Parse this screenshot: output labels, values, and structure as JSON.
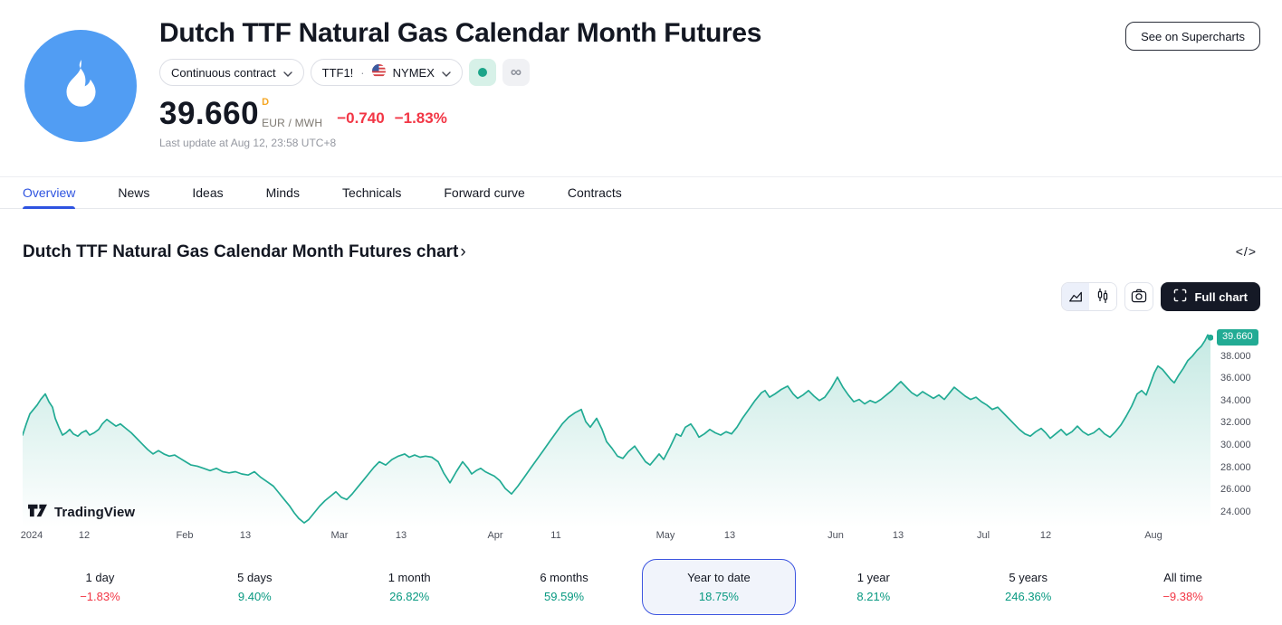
{
  "header": {
    "title": "Dutch TTF Natural Gas Calendar Month Futures",
    "supercharts_label": "See on Supercharts",
    "contract_label": "Continuous contract",
    "symbol": "TTF1!",
    "separator": "·",
    "exchange": "NYMEX",
    "price": "39.660",
    "data_mode": "D",
    "unit": "EUR / MWH",
    "change_abs": "−0.740",
    "change_pct": "−1.83%",
    "last_update": "Last update at Aug 12, 23:58 UTC+8",
    "infinity_glyph": "∞"
  },
  "tabs": [
    {
      "label": "Overview",
      "active": true
    },
    {
      "label": "News",
      "active": false
    },
    {
      "label": "Ideas",
      "active": false
    },
    {
      "label": "Minds",
      "active": false
    },
    {
      "label": "Technicals",
      "active": false
    },
    {
      "label": "Forward curve",
      "active": false
    },
    {
      "label": "Contracts",
      "active": false
    }
  ],
  "chart_section": {
    "heading": "Dutch TTF Natural Gas Calendar Month Futures chart",
    "heading_arrow": "›",
    "code_glyph": "</>",
    "full_chart_label": "Full chart",
    "watermark": "TradingView"
  },
  "periods": [
    {
      "label": "1 day",
      "value": "−1.83%",
      "dir": "down",
      "selected": false
    },
    {
      "label": "5 days",
      "value": "9.40%",
      "dir": "up",
      "selected": false
    },
    {
      "label": "1 month",
      "value": "26.82%",
      "dir": "up",
      "selected": false
    },
    {
      "label": "6 months",
      "value": "59.59%",
      "dir": "up",
      "selected": false
    },
    {
      "label": "Year to date",
      "value": "18.75%",
      "dir": "up",
      "selected": true
    },
    {
      "label": "1 year",
      "value": "8.21%",
      "dir": "up",
      "selected": false
    },
    {
      "label": "5 years",
      "value": "246.36%",
      "dir": "up",
      "selected": false
    },
    {
      "label": "All time",
      "value": "−9.38%",
      "dir": "down",
      "selected": false
    }
  ],
  "colors": {
    "up": "#089981",
    "down": "#f23645",
    "accent": "#2e53e0",
    "line": "#22ab94"
  },
  "chart_data": {
    "type": "area",
    "title": "Dutch TTF Natural Gas Calendar Month Futures chart",
    "ylabel": "EUR/MWH",
    "last_price": 39.66,
    "last_price_label": "39.660",
    "legend_position": "none",
    "grid": false,
    "axis": {
      "value_top": 40.9,
      "value_bottom": 22.6,
      "plot_left": 25,
      "plot_right": 1340,
      "plot_top": 358,
      "plot_bottom": 583
    },
    "y_ticks": [
      {
        "label": "38.000",
        "value": 38
      },
      {
        "label": "36.000",
        "value": 36
      },
      {
        "label": "34.000",
        "value": 34
      },
      {
        "label": "32.000",
        "value": 32
      },
      {
        "label": "30.000",
        "value": 30
      },
      {
        "label": "28.000",
        "value": 28
      },
      {
        "label": "26.000",
        "value": 26
      },
      {
        "label": "24.000",
        "value": 24
      }
    ],
    "x_ticks": [
      {
        "label": "2024",
        "x": 35
      },
      {
        "label": "12",
        "x": 93
      },
      {
        "label": "Feb",
        "x": 204
      },
      {
        "label": "13",
        "x": 271
      },
      {
        "label": "Mar",
        "x": 375
      },
      {
        "label": "13",
        "x": 443
      },
      {
        "label": "Apr",
        "x": 547
      },
      {
        "label": "11",
        "x": 614
      },
      {
        "label": "May",
        "x": 735
      },
      {
        "label": "13",
        "x": 806
      },
      {
        "label": "Jun",
        "x": 923
      },
      {
        "label": "13",
        "x": 992
      },
      {
        "label": "Jul",
        "x": 1086
      },
      {
        "label": "12",
        "x": 1155
      },
      {
        "label": "Aug",
        "x": 1274
      }
    ],
    "points": [
      [
        25,
        30.9
      ],
      [
        29,
        31.9
      ],
      [
        33,
        32.8
      ],
      [
        37,
        33.2
      ],
      [
        41,
        33.6
      ],
      [
        45,
        34.1
      ],
      [
        50,
        34.6
      ],
      [
        54,
        33.9
      ],
      [
        58,
        33.4
      ],
      [
        61,
        32.4
      ],
      [
        65,
        31.6
      ],
      [
        69,
        30.9
      ],
      [
        73,
        31.1
      ],
      [
        77,
        31.4
      ],
      [
        81,
        31.0
      ],
      [
        86,
        30.8
      ],
      [
        90,
        31.1
      ],
      [
        95,
        31.3
      ],
      [
        99,
        30.9
      ],
      [
        104,
        31.1
      ],
      [
        109,
        31.4
      ],
      [
        113,
        31.9
      ],
      [
        118,
        32.3
      ],
      [
        123,
        32.0
      ],
      [
        128,
        31.7
      ],
      [
        133,
        31.9
      ],
      [
        139,
        31.5
      ],
      [
        145,
        31.1
      ],
      [
        151,
        30.6
      ],
      [
        157,
        30.1
      ],
      [
        163,
        29.6
      ],
      [
        169,
        29.2
      ],
      [
        175,
        29.5
      ],
      [
        181,
        29.2
      ],
      [
        187,
        29.0
      ],
      [
        193,
        29.1
      ],
      [
        199,
        28.8
      ],
      [
        205,
        28.5
      ],
      [
        211,
        28.2
      ],
      [
        218,
        28.1
      ],
      [
        225,
        27.9
      ],
      [
        232,
        27.7
      ],
      [
        239,
        27.9
      ],
      [
        246,
        27.6
      ],
      [
        253,
        27.5
      ],
      [
        260,
        27.6
      ],
      [
        267,
        27.4
      ],
      [
        274,
        27.3
      ],
      [
        281,
        27.6
      ],
      [
        288,
        27.1
      ],
      [
        295,
        26.7
      ],
      [
        302,
        26.3
      ],
      [
        308,
        25.7
      ],
      [
        314,
        25.1
      ],
      [
        320,
        24.5
      ],
      [
        325,
        23.9
      ],
      [
        330,
        23.4
      ],
      [
        336,
        23.0
      ],
      [
        341,
        23.3
      ],
      [
        347,
        23.9
      ],
      [
        353,
        24.5
      ],
      [
        359,
        25.0
      ],
      [
        365,
        25.4
      ],
      [
        371,
        25.8
      ],
      [
        377,
        25.3
      ],
      [
        383,
        25.1
      ],
      [
        389,
        25.6
      ],
      [
        395,
        26.2
      ],
      [
        401,
        26.8
      ],
      [
        407,
        27.4
      ],
      [
        413,
        28.0
      ],
      [
        419,
        28.5
      ],
      [
        426,
        28.2
      ],
      [
        433,
        28.7
      ],
      [
        440,
        29.0
      ],
      [
        447,
        29.2
      ],
      [
        452,
        28.9
      ],
      [
        458,
        29.1
      ],
      [
        464,
        28.9
      ],
      [
        470,
        29.0
      ],
      [
        477,
        28.9
      ],
      [
        484,
        28.5
      ],
      [
        490,
        27.5
      ],
      [
        497,
        26.6
      ],
      [
        504,
        27.6
      ],
      [
        511,
        28.5
      ],
      [
        517,
        27.9
      ],
      [
        521,
        27.4
      ],
      [
        526,
        27.7
      ],
      [
        531,
        27.9
      ],
      [
        536,
        27.6
      ],
      [
        541,
        27.4
      ],
      [
        546,
        27.2
      ],
      [
        552,
        26.8
      ],
      [
        558,
        26.1
      ],
      [
        565,
        25.6
      ],
      [
        572,
        26.3
      ],
      [
        579,
        27.1
      ],
      [
        586,
        27.9
      ],
      [
        593,
        28.7
      ],
      [
        600,
        29.5
      ],
      [
        607,
        30.3
      ],
      [
        614,
        31.1
      ],
      [
        621,
        31.9
      ],
      [
        628,
        32.5
      ],
      [
        635,
        32.9
      ],
      [
        642,
        33.2
      ],
      [
        647,
        32.1
      ],
      [
        652,
        31.6
      ],
      [
        659,
        32.4
      ],
      [
        665,
        31.4
      ],
      [
        670,
        30.3
      ],
      [
        676,
        29.7
      ],
      [
        682,
        29.0
      ],
      [
        688,
        28.8
      ],
      [
        694,
        29.4
      ],
      [
        701,
        29.9
      ],
      [
        707,
        29.2
      ],
      [
        713,
        28.5
      ],
      [
        718,
        28.2
      ],
      [
        724,
        28.8
      ],
      [
        728,
        29.2
      ],
      [
        733,
        28.7
      ],
      [
        740,
        29.8
      ],
      [
        747,
        31.0
      ],
      [
        752,
        30.8
      ],
      [
        757,
        31.6
      ],
      [
        763,
        31.9
      ],
      [
        768,
        31.3
      ],
      [
        772,
        30.7
      ],
      [
        778,
        31.0
      ],
      [
        784,
        31.4
      ],
      [
        790,
        31.1
      ],
      [
        796,
        30.9
      ],
      [
        802,
        31.2
      ],
      [
        808,
        31.0
      ],
      [
        814,
        31.6
      ],
      [
        820,
        32.4
      ],
      [
        827,
        33.2
      ],
      [
        834,
        34.0
      ],
      [
        841,
        34.7
      ],
      [
        845,
        34.9
      ],
      [
        850,
        34.3
      ],
      [
        856,
        34.6
      ],
      [
        863,
        35.0
      ],
      [
        870,
        35.3
      ],
      [
        876,
        34.6
      ],
      [
        881,
        34.2
      ],
      [
        887,
        34.5
      ],
      [
        893,
        34.9
      ],
      [
        899,
        34.4
      ],
      [
        905,
        34.0
      ],
      [
        911,
        34.3
      ],
      [
        918,
        35.1
      ],
      [
        925,
        36.1
      ],
      [
        931,
        35.2
      ],
      [
        937,
        34.5
      ],
      [
        943,
        33.9
      ],
      [
        949,
        34.1
      ],
      [
        955,
        33.7
      ],
      [
        961,
        34.0
      ],
      [
        967,
        33.8
      ],
      [
        973,
        34.1
      ],
      [
        979,
        34.5
      ],
      [
        985,
        34.9
      ],
      [
        991,
        35.4
      ],
      [
        995,
        35.7
      ],
      [
        1001,
        35.2
      ],
      [
        1007,
        34.7
      ],
      [
        1013,
        34.4
      ],
      [
        1019,
        34.8
      ],
      [
        1025,
        34.5
      ],
      [
        1031,
        34.2
      ],
      [
        1037,
        34.5
      ],
      [
        1043,
        34.1
      ],
      [
        1049,
        34.7
      ],
      [
        1054,
        35.2
      ],
      [
        1060,
        34.8
      ],
      [
        1066,
        34.4
      ],
      [
        1072,
        34.1
      ],
      [
        1078,
        34.3
      ],
      [
        1084,
        33.9
      ],
      [
        1090,
        33.6
      ],
      [
        1096,
        33.2
      ],
      [
        1102,
        33.4
      ],
      [
        1108,
        32.9
      ],
      [
        1114,
        32.4
      ],
      [
        1120,
        31.9
      ],
      [
        1126,
        31.4
      ],
      [
        1132,
        31.0
      ],
      [
        1138,
        30.8
      ],
      [
        1144,
        31.2
      ],
      [
        1150,
        31.5
      ],
      [
        1155,
        31.1
      ],
      [
        1160,
        30.6
      ],
      [
        1166,
        31.0
      ],
      [
        1172,
        31.4
      ],
      [
        1178,
        30.9
      ],
      [
        1184,
        31.2
      ],
      [
        1190,
        31.7
      ],
      [
        1196,
        31.2
      ],
      [
        1202,
        30.9
      ],
      [
        1208,
        31.1
      ],
      [
        1214,
        31.5
      ],
      [
        1220,
        31.0
      ],
      [
        1226,
        30.7
      ],
      [
        1232,
        31.2
      ],
      [
        1238,
        31.8
      ],
      [
        1244,
        32.6
      ],
      [
        1250,
        33.5
      ],
      [
        1256,
        34.6
      ],
      [
        1261,
        34.9
      ],
      [
        1266,
        34.5
      ],
      [
        1271,
        35.6
      ],
      [
        1275,
        36.5
      ],
      [
        1279,
        37.1
      ],
      [
        1284,
        36.8
      ],
      [
        1288,
        36.4
      ],
      [
        1293,
        35.9
      ],
      [
        1297,
        35.6
      ],
      [
        1302,
        36.3
      ],
      [
        1307,
        36.9
      ],
      [
        1312,
        37.6
      ],
      [
        1317,
        38.0
      ],
      [
        1322,
        38.5
      ],
      [
        1327,
        38.9
      ],
      [
        1331,
        39.4
      ],
      [
        1334,
        39.9
      ],
      [
        1337,
        39.66
      ]
    ]
  }
}
